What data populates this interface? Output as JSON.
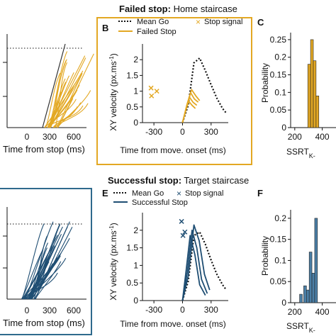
{
  "colors": {
    "failed": "#E3A823",
    "successful": "#1F4E73",
    "mean_go": "#111111",
    "frame_failed": "#E3A823",
    "frame_successful": "#2E6A8C",
    "rt_black": "#333333"
  },
  "rows": [
    {
      "title_bold": "Failed stop:",
      "title_rest": " Home staircase",
      "panel_a": {
        "xticks": [
          "0",
          "300",
          "600"
        ],
        "xlabel": "Time from stop (ms)"
      },
      "panel_b": {
        "letter": "B",
        "legend": [
          "Mean Go",
          "Failed Stop",
          "Stop signal"
        ],
        "yticks": [
          "0",
          "0.5",
          "1",
          "1.5",
          "2"
        ],
        "ylabel_main": "XY velocity (px.ms",
        "ylabel_sup": "-1",
        "ylabel_close": ")",
        "xticks": [
          "-300",
          "0",
          "300"
        ],
        "xlabel": "Time from move. onset (ms)"
      },
      "panel_c": {
        "letter": "C",
        "yticks": [
          "0",
          "0.05",
          "0.1",
          "0.15",
          "0.2",
          "0.25"
        ],
        "ylabel": "Probability",
        "xticks": [
          "200",
          "400"
        ],
        "xlabel": "SSRT",
        "xlabel_sub": "K-"
      }
    },
    {
      "title_bold": "Successful stop:",
      "title_rest": " Target staircase",
      "panel_a": {
        "xticks": [
          "0",
          "300",
          "600"
        ],
        "xlabel": "Time from stop (ms)"
      },
      "panel_b": {
        "letter": "E",
        "legend": [
          "Mean Go",
          "Successful Stop",
          "Stop signal"
        ],
        "yticks": [
          "0",
          "0.5",
          "1",
          "1.5",
          "2"
        ],
        "ylabel_main": "XY velocity (px.ms",
        "ylabel_sup": "-1",
        "ylabel_close": ")",
        "xticks": [
          "-300",
          "0",
          "300"
        ],
        "xlabel": "Time from move. onset (ms)"
      },
      "panel_c": {
        "letter": "F",
        "yticks": [
          "0",
          "0.05",
          "0.1",
          "0.15",
          "0.2"
        ],
        "ylabel": "Probability",
        "xticks": [
          "200",
          "400"
        ],
        "xlabel": "SSRT",
        "xlabel_sub": "K-"
      }
    }
  ],
  "chart_data": [
    {
      "type": "line",
      "panel": "B",
      "xlabel": "Time from move. onset (ms)",
      "ylabel": "XY velocity (px.ms-1)",
      "xlim": [
        -420,
        480
      ],
      "ylim": [
        0,
        2.5
      ],
      "series": [
        {
          "name": "Mean Go",
          "style": "dotted",
          "x": [
            0,
            60,
            120,
            180,
            240,
            300,
            360,
            420,
            460
          ],
          "y": [
            0,
            0.55,
            1.9,
            2.05,
            1.65,
            1.2,
            0.78,
            0.45,
            0.3
          ]
        },
        {
          "name": "Failed Stop",
          "style": "solid",
          "lines": [
            {
              "x": [
                0,
                50,
                95,
                140,
                180
              ],
              "y": [
                0,
                0.6,
                1.05,
                0.85,
                0.7
              ]
            },
            {
              "x": [
                0,
                45,
                85,
                125,
                165
              ],
              "y": [
                0,
                0.55,
                0.95,
                0.75,
                0.65
              ]
            },
            {
              "x": [
                0,
                40,
                75,
                110,
                150
              ],
              "y": [
                0,
                0.45,
                0.8,
                0.65,
                0.55
              ]
            },
            {
              "x": [
                0,
                35,
                65,
                100,
                135
              ],
              "y": [
                0,
                0.4,
                0.68,
                0.55,
                0.45
              ]
            }
          ]
        },
        {
          "name": "Stop signal",
          "style": "marker",
          "x": [
            -330,
            -270,
            -325
          ],
          "y": [
            1.1,
            1.0,
            0.85
          ]
        }
      ]
    },
    {
      "type": "bar",
      "panel": "C",
      "xlabel": "SSRT",
      "ylabel": "Probability",
      "x": [
        305,
        325,
        345,
        365
      ],
      "values": [
        0.18,
        0.25,
        0.19,
        0.09
      ]
    },
    {
      "type": "line",
      "panel": "E",
      "xlabel": "Time from move. onset (ms)",
      "ylabel": "XY velocity (px.ms-1)",
      "xlim": [
        -420,
        480
      ],
      "ylim": [
        0,
        2.5
      ],
      "series": [
        {
          "name": "Mean Go",
          "style": "dotted",
          "x": [
            0,
            60,
            120,
            180,
            240,
            300,
            360,
            420,
            460
          ],
          "y": [
            0,
            0.55,
            1.85,
            1.95,
            1.6,
            1.15,
            0.75,
            0.45,
            0.3
          ]
        },
        {
          "name": "Successful Stop",
          "style": "solid",
          "lines": [
            {
              "x": [
                0,
                60,
                120,
                175,
                230,
                285
              ],
              "y": [
                0,
                0.7,
                2.15,
                1.7,
                0.75,
                0.3
              ]
            },
            {
              "x": [
                0,
                50,
                100,
                150,
                200,
                260
              ],
              "y": [
                0,
                0.8,
                2.0,
                1.5,
                0.6,
                0.2
              ]
            },
            {
              "x": [
                0,
                40,
                80,
                130,
                180,
                240
              ],
              "y": [
                0,
                0.9,
                1.85,
                1.3,
                0.45,
                0.15
              ]
            }
          ]
        },
        {
          "name": "Stop signal",
          "style": "marker",
          "x": [
            -10,
            25,
            5
          ],
          "y": [
            2.25,
            1.95,
            1.85
          ]
        }
      ]
    },
    {
      "type": "bar",
      "panel": "F",
      "xlabel": "SSRT",
      "ylabel": "Probability",
      "x": [
        245,
        275,
        295,
        315,
        335,
        355
      ],
      "values": [
        0.02,
        0.04,
        0.03,
        0.12,
        0.07,
        0.2
      ]
    }
  ]
}
